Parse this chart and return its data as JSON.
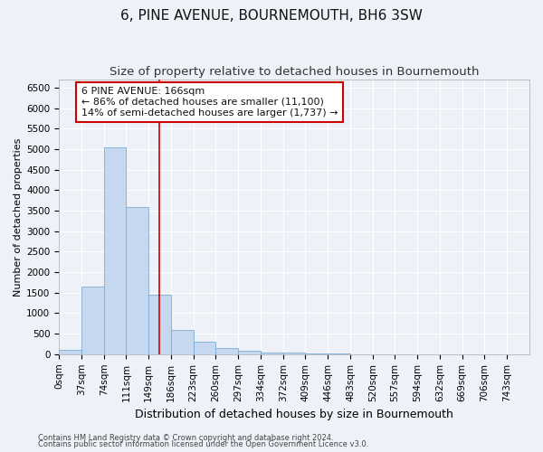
{
  "title1": "6, PINE AVENUE, BOURNEMOUTH, BH6 3SW",
  "title2": "Size of property relative to detached houses in Bournemouth",
  "xlabel": "Distribution of detached houses by size in Bournemouth",
  "ylabel": "Number of detached properties",
  "bin_labels": [
    "0sqm",
    "37sqm",
    "74sqm",
    "111sqm",
    "149sqm",
    "186sqm",
    "223sqm",
    "260sqm",
    "297sqm",
    "334sqm",
    "372sqm",
    "409sqm",
    "446sqm",
    "483sqm",
    "520sqm",
    "557sqm",
    "594sqm",
    "632sqm",
    "669sqm",
    "706sqm",
    "743sqm"
  ],
  "bar_values": [
    100,
    1650,
    5050,
    3600,
    1450,
    600,
    300,
    160,
    80,
    50,
    30,
    15,
    8,
    3,
    2,
    1,
    0,
    0,
    0,
    0,
    0
  ],
  "bar_color": "#c5d8f0",
  "bar_edge_color": "#7aadd4",
  "property_line_x": 166,
  "bin_width": 37,
  "annotation_line1": "6 PINE AVENUE: 166sqm",
  "annotation_line2": "← 86% of detached houses are smaller (11,100)",
  "annotation_line3": "14% of semi-detached houses are larger (1,737) →",
  "annotation_box_color": "#ffffff",
  "annotation_box_edge": "#cc0000",
  "red_line_color": "#cc0000",
  "ylim": [
    0,
    6700
  ],
  "yticks": [
    0,
    500,
    1000,
    1500,
    2000,
    2500,
    3000,
    3500,
    4000,
    4500,
    5000,
    5500,
    6000,
    6500
  ],
  "footer1": "Contains HM Land Registry data © Crown copyright and database right 2024.",
  "footer2": "Contains public sector information licensed under the Open Government Licence v3.0.",
  "bg_color": "#eef2f8",
  "grid_color": "#ffffff",
  "title1_fontsize": 11,
  "title2_fontsize": 9.5,
  "xlabel_fontsize": 9,
  "ylabel_fontsize": 8,
  "tick_fontsize": 7.5,
  "annotation_fontsize": 8,
  "footer_fontsize": 6
}
